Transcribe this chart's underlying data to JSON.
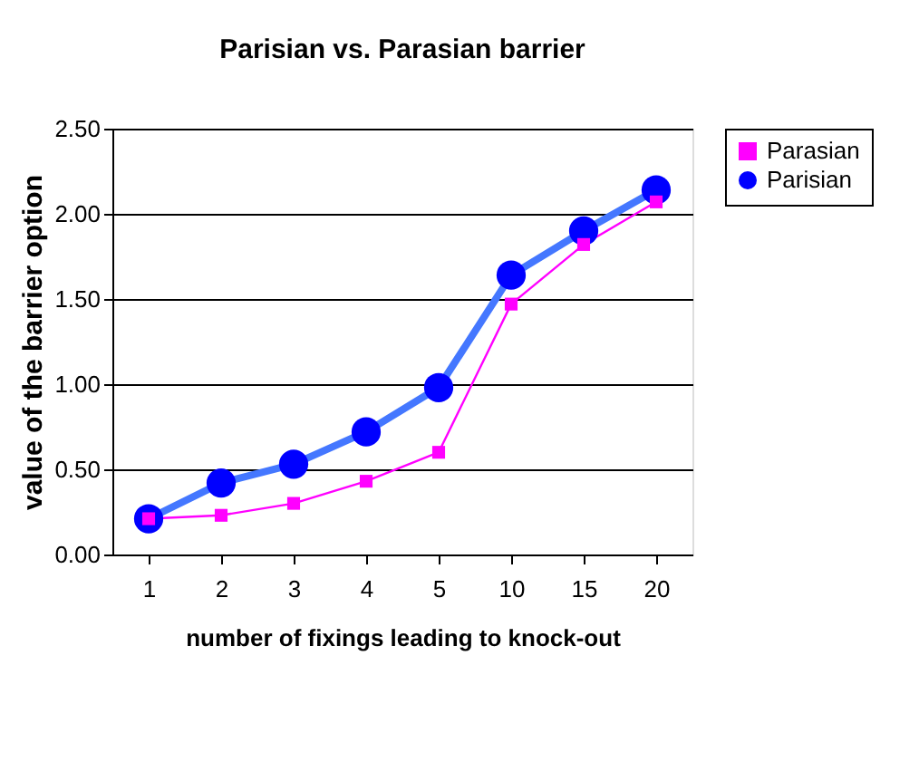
{
  "chart_data": {
    "type": "line",
    "title": "Parisian vs. Parasian barrier",
    "xlabel": "number of fixings leading to knock-out",
    "ylabel": "value of the barrier option",
    "categories": [
      "1",
      "2",
      "3",
      "4",
      "5",
      "10",
      "15",
      "20"
    ],
    "series": [
      {
        "name": "Parasian",
        "color": "#ff00ff",
        "marker": "square",
        "values": [
          0.21,
          0.23,
          0.3,
          0.43,
          0.6,
          1.47,
          1.82,
          2.07
        ]
      },
      {
        "name": "Parisian",
        "color": "#0000ff",
        "marker": "circle",
        "values": [
          0.21,
          0.42,
          0.53,
          0.72,
          0.98,
          1.64,
          1.9,
          2.14
        ]
      }
    ],
    "ylim": [
      0,
      2.5
    ],
    "yticks": [
      {
        "value": 0,
        "label": "0.00"
      },
      {
        "value": 0.5,
        "label": "0.50"
      },
      {
        "value": 1,
        "label": "1.00"
      },
      {
        "value": 1.5,
        "label": "1.50"
      },
      {
        "value": 2,
        "label": "2.00"
      },
      {
        "value": 2.5,
        "label": "2.50"
      }
    ],
    "grid": "y",
    "legend": "right"
  }
}
